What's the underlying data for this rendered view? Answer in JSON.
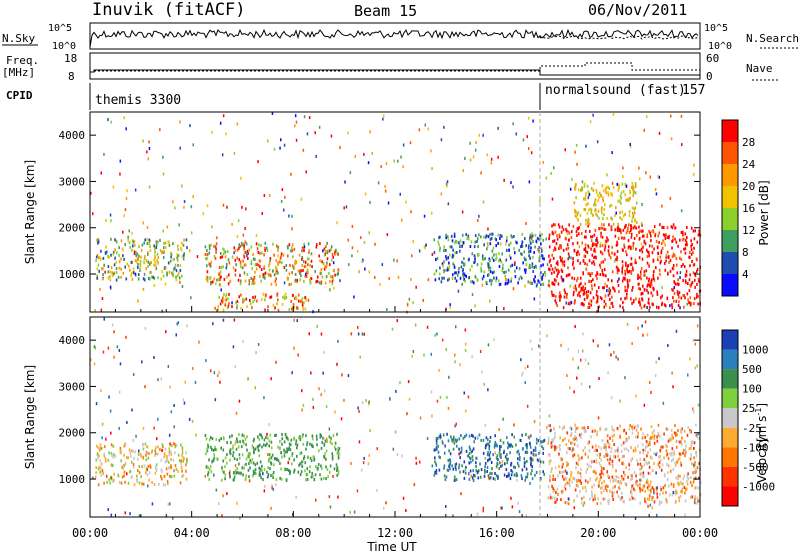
{
  "header": {
    "station": "Inuvik (fitACF)",
    "beam": "Beam 15",
    "date": "06/Nov/2011"
  },
  "top_panels": {
    "nsky_label": "N.Sky",
    "nsky_ticks": [
      "10^5",
      "10^0"
    ],
    "nsearch_label": "N.Search",
    "nsearch_ticks": [
      "10^5",
      "10^0"
    ],
    "freq_label": "Freq.",
    "freq_unit": "[MHz]",
    "freq_ticks": [
      "18",
      "8"
    ],
    "nave_label": "Nave",
    "nave_ticks": [
      "60",
      "0"
    ],
    "cpid_label": "CPID",
    "cpid_segments": [
      {
        "text": "themis 3300",
        "start_hour": 0
      },
      {
        "text": "normalsound (fast)",
        "start_hour": 18
      },
      {
        "text": "157",
        "start_hour": 18
      }
    ]
  },
  "axes": {
    "x_label": "Time UT",
    "x_ticks": [
      "00:00",
      "04:00",
      "08:00",
      "12:00",
      "16:00",
      "20:00",
      "00:00"
    ],
    "x_range_hours": [
      0,
      24
    ],
    "y_label": "Slant Range [km]",
    "y_ticks": [
      "1000",
      "2000",
      "3000",
      "4000"
    ],
    "y_range_km": [
      180,
      4500
    ]
  },
  "power_scale": {
    "label": "Power [dB]",
    "ticks": [
      "28",
      "24",
      "20",
      "16",
      "12",
      "8",
      "4"
    ],
    "colors": [
      "#ff0000",
      "#ff5500",
      "#ff9900",
      "#f2c200",
      "#8ccf2c",
      "#3f9f5f",
      "#1e4fb0",
      "#0a0aff"
    ]
  },
  "velocity_scale": {
    "label": "Velocity",
    "unit": "[m s",
    "unit_exp": "-1",
    "unit_close": "]",
    "ticks": [
      "1000",
      "500",
      "100",
      "25",
      "-25",
      "-100",
      "-500",
      "-1000"
    ],
    "colors": [
      "#1c3fb5",
      "#2a7fbd",
      "#3a8f4f",
      "#7fcf3f",
      "#c8c8c8",
      "#ffaa33",
      "#ff7700",
      "#ff3300",
      "#ff0000"
    ]
  },
  "chart_data": {
    "type": "heatmap",
    "title": "Inuvik (fitACF) Beam 15 06/Nov/2011",
    "xlabel": "Time UT",
    "ylabel": "Slant Range [km]",
    "xlim": [
      0,
      24
    ],
    "ylim": [
      180,
      4500
    ],
    "cpid_change_hour": 18,
    "power_features": [
      {
        "t0": 0.2,
        "t1": 3.8,
        "r0": 900,
        "r1": 1800,
        "level": "12-28"
      },
      {
        "t0": 4.5,
        "t1": 9.8,
        "r0": 800,
        "r1": 1700,
        "level": "8-28"
      },
      {
        "t0": 5.0,
        "t1": 8.5,
        "r0": 250,
        "r1": 600,
        "level": "8-28"
      },
      {
        "t0": 13.5,
        "t1": 17.9,
        "r0": 800,
        "r1": 1900,
        "level": "4-28"
      },
      {
        "t0": 18.0,
        "t1": 24.0,
        "r0": 300,
        "r1": 2100,
        "level": "24-28"
      },
      {
        "t0": 19.0,
        "t1": 21.5,
        "r0": 2100,
        "r1": 3000,
        "level": "16-24"
      }
    ],
    "velocity_features": [
      {
        "t0": 0.2,
        "t1": 3.8,
        "r0": 900,
        "r1": 1800,
        "velocity": "-100 to 100"
      },
      {
        "t0": 4.5,
        "t1": 9.8,
        "r0": 1000,
        "r1": 2000,
        "velocity": "100 to 500"
      },
      {
        "t0": 13.5,
        "t1": 17.9,
        "r0": 1000,
        "r1": 2000,
        "velocity": "500 to 1000"
      },
      {
        "t0": 18.0,
        "t1": 24.0,
        "r0": 500,
        "r1": 2200,
        "velocity": "-25 to -500"
      }
    ]
  }
}
